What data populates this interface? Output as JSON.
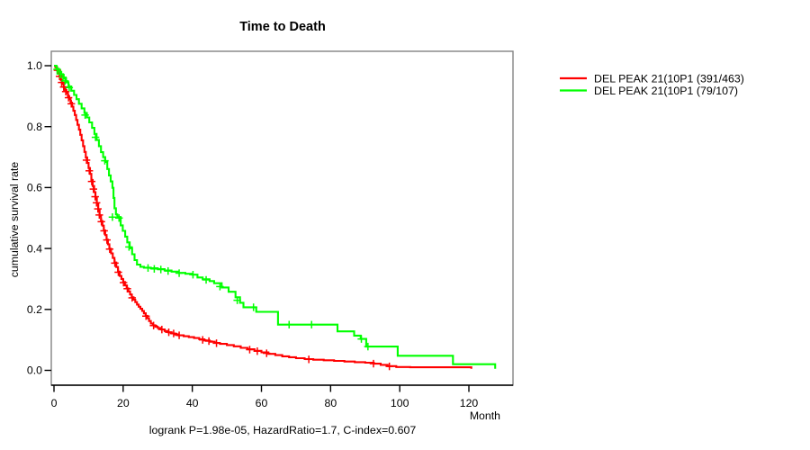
{
  "title": "Time to Death",
  "axes": {
    "x_label": "Month",
    "y_label": "cumulative survival rate"
  },
  "caption": "logrank P=1.98e-05, HazardRatio=1.7, C-index=0.607",
  "legend": {
    "items": [
      {
        "label": "DEL PEAK 21(10P1 (391/463)",
        "color": "#ff0000"
      },
      {
        "label": "DEL PEAK 21(10P1 (79/107)",
        "color": "#00ff00"
      }
    ]
  },
  "chart_data": {
    "type": "line",
    "variant": "kaplan-meier-step",
    "title": "Time to Death",
    "xlabel": "Month",
    "ylabel": "cumulative survival rate",
    "xlim": [
      0,
      133
    ],
    "ylim": [
      0,
      1.04
    ],
    "xticks": [
      0,
      20,
      40,
      60,
      80,
      100,
      120
    ],
    "yticks": [
      0.0,
      0.2,
      0.4,
      0.6,
      0.8,
      1.0
    ],
    "grid": false,
    "legend_position": "outside-top-right",
    "annotation": "logrank P=1.98e-05, HazardRatio=1.7, C-index=0.607",
    "series": [
      {
        "name": "DEL PEAK 21(10P1 (391/463)",
        "color": "#ff0000",
        "steps": [
          [
            0,
            1.0
          ],
          [
            0.4,
            0.995
          ],
          [
            0.8,
            0.985
          ],
          [
            1.2,
            0.975
          ],
          [
            1.6,
            0.965
          ],
          [
            2,
            0.952
          ],
          [
            2.4,
            0.94
          ],
          [
            2.8,
            0.93
          ],
          [
            3.2,
            0.92
          ],
          [
            3.6,
            0.91
          ],
          [
            4,
            0.9
          ],
          [
            4.4,
            0.89
          ],
          [
            4.8,
            0.879
          ],
          [
            5.2,
            0.866
          ],
          [
            5.6,
            0.852
          ],
          [
            6,
            0.838
          ],
          [
            6.4,
            0.822
          ],
          [
            6.8,
            0.806
          ],
          [
            7.2,
            0.79
          ],
          [
            7.6,
            0.773
          ],
          [
            8,
            0.755
          ],
          [
            8.4,
            0.736
          ],
          [
            8.8,
            0.717
          ],
          [
            9.2,
            0.699
          ],
          [
            9.6,
            0.681
          ],
          [
            10,
            0.664
          ],
          [
            10.4,
            0.645
          ],
          [
            10.8,
            0.625
          ],
          [
            11.2,
            0.605
          ],
          [
            11.6,
            0.585
          ],
          [
            12,
            0.565
          ],
          [
            12.4,
            0.545
          ],
          [
            12.8,
            0.525
          ],
          [
            13.2,
            0.506
          ],
          [
            13.6,
            0.49
          ],
          [
            14,
            0.475
          ],
          [
            14.4,
            0.459
          ],
          [
            14.8,
            0.444
          ],
          [
            15.2,
            0.429
          ],
          [
            15.6,
            0.414
          ],
          [
            16,
            0.399
          ],
          [
            16.5,
            0.384
          ],
          [
            17,
            0.369
          ],
          [
            17.5,
            0.354
          ],
          [
            18,
            0.339
          ],
          [
            18.5,
            0.324
          ],
          [
            19,
            0.31
          ],
          [
            19.5,
            0.3
          ],
          [
            20,
            0.29
          ],
          [
            20.5,
            0.279
          ],
          [
            21,
            0.269
          ],
          [
            21.5,
            0.259
          ],
          [
            22,
            0.249
          ],
          [
            22.5,
            0.24
          ],
          [
            23,
            0.232
          ],
          [
            23.5,
            0.224
          ],
          [
            24,
            0.216
          ],
          [
            24.5,
            0.209
          ],
          [
            25,
            0.202
          ],
          [
            25.5,
            0.195
          ],
          [
            26,
            0.187
          ],
          [
            26.5,
            0.179
          ],
          [
            27,
            0.171
          ],
          [
            27.5,
            0.162
          ],
          [
            28,
            0.154
          ],
          [
            28.6,
            0.148
          ],
          [
            29.3,
            0.143
          ],
          [
            30,
            0.139
          ],
          [
            31,
            0.134
          ],
          [
            32,
            0.129
          ],
          [
            33,
            0.125
          ],
          [
            34,
            0.121
          ],
          [
            35,
            0.118
          ],
          [
            36,
            0.115
          ],
          [
            37.5,
            0.112
          ],
          [
            39,
            0.109
          ],
          [
            40.5,
            0.106
          ],
          [
            42,
            0.102
          ],
          [
            43.5,
            0.098
          ],
          [
            45,
            0.094
          ],
          [
            46.5,
            0.09
          ],
          [
            48,
            0.087
          ],
          [
            50,
            0.083
          ],
          [
            52,
            0.079
          ],
          [
            54,
            0.074
          ],
          [
            56,
            0.069
          ],
          [
            58,
            0.064
          ],
          [
            60,
            0.059
          ],
          [
            62,
            0.054
          ],
          [
            64,
            0.05
          ],
          [
            66,
            0.046
          ],
          [
            68,
            0.043
          ],
          [
            70,
            0.04
          ],
          [
            72.5,
            0.037
          ],
          [
            75,
            0.035
          ],
          [
            78,
            0.033
          ],
          [
            81,
            0.031
          ],
          [
            84,
            0.029
          ],
          [
            87,
            0.027
          ],
          [
            90,
            0.025
          ],
          [
            92.5,
            0.022
          ],
          [
            94.5,
            0.018
          ],
          [
            96.5,
            0.014
          ],
          [
            99,
            0.011
          ],
          [
            103,
            0.01
          ],
          [
            120.7,
            0.005
          ]
        ],
        "censors": [
          [
            1.0,
            0.985
          ],
          [
            1.6,
            0.965
          ],
          [
            2.2,
            0.945
          ],
          [
            2.8,
            0.93
          ],
          [
            3.4,
            0.915
          ],
          [
            4.2,
            0.895
          ],
          [
            5.0,
            0.875
          ],
          [
            9.4,
            0.69
          ],
          [
            10.2,
            0.655
          ],
          [
            10.9,
            0.62
          ],
          [
            11.4,
            0.595
          ],
          [
            11.9,
            0.57
          ],
          [
            12.3,
            0.55
          ],
          [
            12.7,
            0.53
          ],
          [
            13.1,
            0.51
          ],
          [
            13.7,
            0.488
          ],
          [
            14.5,
            0.458
          ],
          [
            15.3,
            0.428
          ],
          [
            16.1,
            0.398
          ],
          [
            17.6,
            0.352
          ],
          [
            18.6,
            0.322
          ],
          [
            20.1,
            0.288
          ],
          [
            21.2,
            0.268
          ],
          [
            22.6,
            0.238
          ],
          [
            26.6,
            0.178
          ],
          [
            28.8,
            0.147
          ],
          [
            31.2,
            0.134
          ],
          [
            33.2,
            0.125
          ],
          [
            34.6,
            0.121
          ],
          [
            36.2,
            0.115
          ],
          [
            43,
            0.1
          ],
          [
            44.8,
            0.096
          ],
          [
            47,
            0.089
          ],
          [
            56.6,
            0.068
          ],
          [
            58.8,
            0.063
          ],
          [
            61.5,
            0.056
          ],
          [
            73.7,
            0.036
          ],
          [
            92.4,
            0.022
          ],
          [
            97,
            0.013
          ]
        ]
      },
      {
        "name": "DEL PEAK 21(10P1 (79/107)",
        "color": "#00ff00",
        "steps": [
          [
            0,
            1.0
          ],
          [
            0.7,
            0.99
          ],
          [
            1.4,
            0.98
          ],
          [
            2.1,
            0.97
          ],
          [
            2.8,
            0.958
          ],
          [
            3.5,
            0.945
          ],
          [
            4.2,
            0.932
          ],
          [
            5,
            0.918
          ],
          [
            5.8,
            0.904
          ],
          [
            6.5,
            0.89
          ],
          [
            7.2,
            0.875
          ],
          [
            8,
            0.86
          ],
          [
            8.8,
            0.845
          ],
          [
            9.5,
            0.83
          ],
          [
            10.2,
            0.814
          ],
          [
            11,
            0.796
          ],
          [
            11.7,
            0.776
          ],
          [
            12.3,
            0.756
          ],
          [
            13,
            0.736
          ],
          [
            13.6,
            0.716
          ],
          [
            14.2,
            0.7
          ],
          [
            14.8,
            0.684
          ],
          [
            15.4,
            0.661
          ],
          [
            15.9,
            0.64
          ],
          [
            16.4,
            0.62
          ],
          [
            16.9,
            0.599
          ],
          [
            17.2,
            0.566
          ],
          [
            17.5,
            0.532
          ],
          [
            17.9,
            0.512
          ],
          [
            18.3,
            0.503
          ],
          [
            19.3,
            0.476
          ],
          [
            19.9,
            0.458
          ],
          [
            20.6,
            0.439
          ],
          [
            21.2,
            0.42
          ],
          [
            21.9,
            0.401
          ],
          [
            22.6,
            0.381
          ],
          [
            23.3,
            0.362
          ],
          [
            24,
            0.347
          ],
          [
            25,
            0.34
          ],
          [
            26,
            0.337
          ],
          [
            28,
            0.335
          ],
          [
            30,
            0.332
          ],
          [
            32,
            0.328
          ],
          [
            34,
            0.324
          ],
          [
            36,
            0.32
          ],
          [
            38,
            0.317
          ],
          [
            40,
            0.314
          ],
          [
            41.5,
            0.305
          ],
          [
            43,
            0.299
          ],
          [
            45,
            0.293
          ],
          [
            46.3,
            0.286
          ],
          [
            48.5,
            0.272
          ],
          [
            50.5,
            0.258
          ],
          [
            52.5,
            0.24
          ],
          [
            53.8,
            0.222
          ],
          [
            54.8,
            0.207
          ],
          [
            58.5,
            0.192
          ],
          [
            64.8,
            0.15
          ],
          [
            82,
            0.128
          ],
          [
            86.8,
            0.114
          ],
          [
            88.7,
            0.103
          ],
          [
            90.3,
            0.078
          ],
          [
            99.4,
            0.048
          ],
          [
            115.4,
            0.02
          ],
          [
            127.6,
            0.005
          ]
        ],
        "censors": [
          [
            0.9,
            0.988
          ],
          [
            1.8,
            0.973
          ],
          [
            2.6,
            0.962
          ],
          [
            3.2,
            0.95
          ],
          [
            4.4,
            0.928
          ],
          [
            9,
            0.838
          ],
          [
            12,
            0.765
          ],
          [
            14.7,
            0.688
          ],
          [
            16.9,
            0.503
          ],
          [
            18.8,
            0.5
          ],
          [
            21.7,
            0.405
          ],
          [
            27.2,
            0.336
          ],
          [
            29,
            0.333
          ],
          [
            30.9,
            0.331
          ],
          [
            33,
            0.326
          ],
          [
            36.2,
            0.319
          ],
          [
            40.2,
            0.314
          ],
          [
            44,
            0.297
          ],
          [
            48,
            0.275
          ],
          [
            53,
            0.23
          ],
          [
            57.7,
            0.207
          ],
          [
            68,
            0.15
          ],
          [
            74.5,
            0.15
          ],
          [
            88.9,
            0.103
          ],
          [
            90.8,
            0.078
          ]
        ]
      }
    ]
  }
}
